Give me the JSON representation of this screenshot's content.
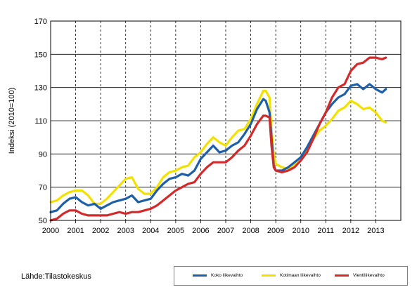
{
  "source_text": "Lähde:Tilastokeskus",
  "chart_data": {
    "type": "line",
    "title": "",
    "xlabel": "",
    "ylabel": "Indeksi (2010=100)",
    "xlim": [
      2000,
      2014
    ],
    "ylim": [
      50,
      170
    ],
    "yticks": [
      50,
      70,
      90,
      110,
      130,
      150,
      170
    ],
    "xtick_labels": [
      "2000",
      "2001",
      "2002",
      "2003",
      "2004",
      "2005",
      "2006",
      "2007",
      "2008",
      "2009",
      "2010",
      "2011",
      "2012",
      "2013"
    ],
    "grid": "vertical dashed at years, horizontal solid at y ticks",
    "legend_position": "bottom-right",
    "x": [
      2000.0,
      2000.25,
      2000.5,
      2000.75,
      2001.0,
      2001.25,
      2001.5,
      2001.75,
      2002.0,
      2002.25,
      2002.5,
      2002.75,
      2003.0,
      2003.25,
      2003.5,
      2003.75,
      2004.0,
      2004.25,
      2004.5,
      2004.75,
      2005.0,
      2005.25,
      2005.5,
      2005.75,
      2006.0,
      2006.25,
      2006.5,
      2006.75,
      2007.0,
      2007.25,
      2007.5,
      2007.75,
      2008.0,
      2008.25,
      2008.5,
      2008.6,
      2008.75,
      2008.83,
      2008.92,
      2009.0,
      2009.25,
      2009.5,
      2009.75,
      2010.0,
      2010.25,
      2010.5,
      2010.75,
      2011.0,
      2011.25,
      2011.5,
      2011.75,
      2012.0,
      2012.25,
      2012.5,
      2012.75,
      2013.0,
      2013.25,
      2013.4
    ],
    "series": [
      {
        "name": "Koko liikevaihto",
        "color": "#1f5fa8",
        "values": [
          55,
          56,
          60,
          63,
          64,
          61,
          59,
          60,
          57,
          59,
          61,
          62,
          63,
          65,
          61,
          62,
          63,
          68,
          72,
          75,
          76,
          78,
          77,
          80,
          87,
          91,
          95,
          91,
          92,
          95,
          97,
          102,
          108,
          117,
          123,
          122,
          115,
          100,
          83,
          80,
          80,
          82,
          85,
          88,
          94,
          101,
          108,
          115,
          120,
          124,
          126,
          131,
          132,
          129,
          132,
          129,
          127,
          129
        ]
      },
      {
        "name": "Kotimaan liikevaihto",
        "color": "#f2e100",
        "values": [
          61,
          62,
          65,
          67,
          68,
          68,
          65,
          60,
          60,
          63,
          67,
          71,
          75,
          76,
          69,
          66,
          66,
          70,
          76,
          79,
          80,
          82,
          83,
          88,
          91,
          96,
          100,
          97,
          95,
          100,
          104,
          105,
          111,
          120,
          128,
          128,
          124,
          105,
          90,
          84,
          82,
          81,
          84,
          88,
          93,
          99,
          104,
          107,
          111,
          116,
          118,
          122,
          120,
          117,
          118,
          115,
          110,
          109
        ]
      },
      {
        "name": "Vientiliikevaihto",
        "color": "#d22a2a",
        "values": [
          50,
          51,
          54,
          56,
          56,
          54,
          53,
          53,
          53,
          53,
          54,
          55,
          54,
          55,
          55,
          56,
          57,
          59,
          62,
          65,
          68,
          70,
          72,
          73,
          78,
          82,
          85,
          85,
          85,
          88,
          92,
          95,
          101,
          108,
          113,
          113,
          112,
          95,
          82,
          80,
          79,
          80,
          82,
          86,
          91,
          99,
          108,
          115,
          124,
          130,
          132,
          140,
          144,
          145,
          148,
          148,
          147,
          148
        ]
      }
    ]
  }
}
